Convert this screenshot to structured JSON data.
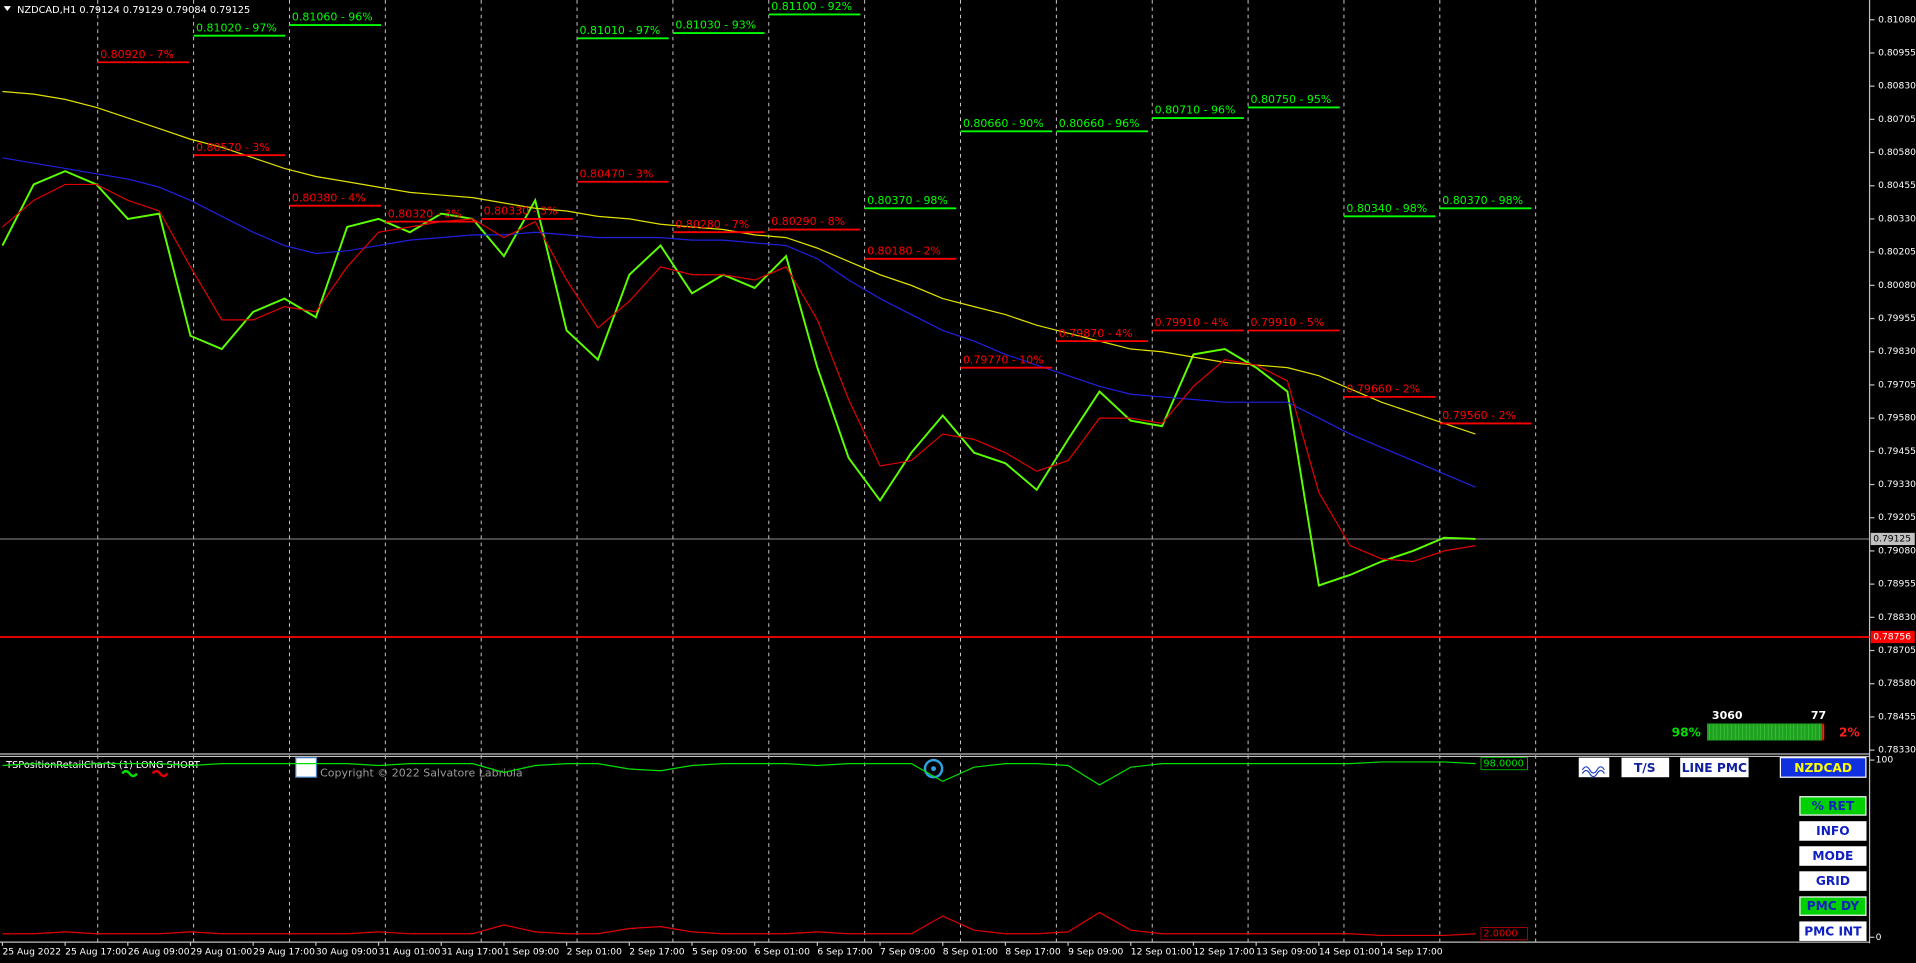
{
  "chart_data": [
    {
      "type": "line",
      "title": "NZDCAD,H1 0.79124 0.79129 0.79084 0.79125",
      "categories": [
        "25 Aug 2022",
        null,
        "25 Aug 17:00",
        null,
        "26 Aug 09:00",
        null,
        "29 Aug 01:00",
        null,
        "29 Aug 17:00",
        null,
        "30 Aug 09:00",
        null,
        "31 Aug 01:00",
        null,
        "31 Aug 17:00",
        null,
        "1 Sep 09:00",
        null,
        "2 Sep 01:00",
        null,
        "2 Sep 17:00",
        null,
        "5 Sep 09:00",
        null,
        "6 Sep 01:00",
        null,
        "6 Sep 17:00",
        null,
        "7 Sep 09:00",
        null,
        "8 Sep 01:00",
        null,
        "8 Sep 17:00",
        null,
        "9 Sep 09:00",
        null,
        "12 Sep 01:00",
        null,
        "12 Sep 17:00",
        null,
        "13 Sep 09:00",
        null,
        "14 Sep 01:00",
        null,
        "14 Sep 17:00",
        null,
        null,
        null
      ],
      "series": [
        {
          "color": "#5cff00",
          "values": [
            0.8023,
            0.8046,
            0.8051,
            0.8046,
            0.8033,
            0.8035,
            0.7989,
            0.7984,
            0.7998,
            0.8003,
            0.7996,
            0.803,
            0.8033,
            0.8028,
            0.8035,
            0.8033,
            0.8019,
            0.804,
            0.7991,
            0.798,
            0.8012,
            0.8023,
            0.8005,
            0.8012,
            0.8007,
            0.8019,
            0.7977,
            0.7943,
            0.7927,
            0.7945,
            0.7959,
            0.7945,
            0.7941,
            0.7931,
            0.795,
            0.7968,
            0.7957,
            0.7955,
            0.7982,
            0.7984,
            0.7977,
            0.7968,
            0.7895,
            0.7899,
            0.7904,
            0.7908,
            0.7913,
            0.79125
          ]
        },
        {
          "color": "#e0e000",
          "values": [
            0.8081,
            0.808,
            0.8078,
            0.8075,
            0.8071,
            0.8067,
            0.8063,
            0.806,
            0.8056,
            0.8052,
            0.8049,
            0.8047,
            0.8045,
            0.8043,
            0.8042,
            0.8041,
            0.8039,
            0.8037,
            0.8036,
            0.8034,
            0.8033,
            0.8031,
            0.803,
            0.8029,
            0.8027,
            0.8026,
            0.8022,
            0.8017,
            0.8012,
            0.8008,
            0.8003,
            0.8,
            0.7997,
            0.7993,
            0.799,
            0.7987,
            0.7984,
            0.7983,
            0.7981,
            0.7979,
            0.7978,
            0.7977,
            0.7974,
            0.7969,
            0.7964,
            0.796,
            0.7956,
            0.7952
          ]
        },
        {
          "color": "#2020e0",
          "values": [
            0.8056,
            0.8054,
            0.8052,
            0.805,
            0.8048,
            0.8045,
            0.804,
            0.8034,
            0.8028,
            0.8023,
            0.802,
            0.8021,
            0.8023,
            0.8025,
            0.8026,
            0.8027,
            0.8027,
            0.8028,
            0.8027,
            0.8026,
            0.8026,
            0.8026,
            0.8025,
            0.8025,
            0.8024,
            0.8023,
            0.8018,
            0.801,
            0.8003,
            0.7997,
            0.7991,
            0.7987,
            0.7982,
            0.7978,
            0.7974,
            0.797,
            0.7967,
            0.7966,
            0.7965,
            0.7964,
            0.7964,
            0.7964,
            0.7958,
            0.7952,
            0.7947,
            0.7942,
            0.7937,
            0.7932
          ]
        },
        {
          "color": "#e00000",
          "values": [
            0.803,
            0.804,
            0.8046,
            0.8046,
            0.804,
            0.8036,
            0.8015,
            0.7995,
            0.7995,
            0.8,
            0.7998,
            0.8015,
            0.8028,
            0.803,
            0.8032,
            0.8033,
            0.8026,
            0.8032,
            0.801,
            0.7992,
            0.8002,
            0.8015,
            0.8012,
            0.8012,
            0.801,
            0.8015,
            0.7995,
            0.7965,
            0.794,
            0.7942,
            0.7952,
            0.795,
            0.7945,
            0.7938,
            0.7942,
            0.7958,
            0.7958,
            0.7956,
            0.797,
            0.798,
            0.7978,
            0.7972,
            0.793,
            0.791,
            0.7905,
            0.7904,
            0.7908,
            0.791
          ]
        }
      ],
      "ylim": [
        0.7832,
        0.81145
      ],
      "yticks": [
        {
          "value": 0.8108,
          "label": "0.81080"
        },
        {
          "value": 0.80955,
          "label": "0.80955"
        },
        {
          "value": 0.8083,
          "label": "0.80830"
        },
        {
          "value": 0.80705,
          "label": "0.80705"
        },
        {
          "value": 0.8058,
          "label": "0.80580"
        },
        {
          "value": 0.80455,
          "label": "0.80455"
        },
        {
          "value": 0.8033,
          "label": "0.80330"
        },
        {
          "value": 0.80205,
          "label": "0.80205"
        },
        {
          "value": 0.8008,
          "label": "0.80080"
        },
        {
          "value": 0.79955,
          "label": "0.79955"
        },
        {
          "value": 0.7983,
          "label": "0.79830"
        },
        {
          "value": 0.79705,
          "label": "0.79705"
        },
        {
          "value": 0.7958,
          "label": "0.79580"
        },
        {
          "value": 0.79455,
          "label": "0.79455"
        },
        {
          "value": 0.7933,
          "label": "0.79330"
        },
        {
          "value": 0.79205,
          "label": "0.79205"
        },
        {
          "value": 0.7908,
          "label": "0.79080"
        },
        {
          "value": 0.78955,
          "label": "0.78955"
        },
        {
          "value": 0.7883,
          "label": "0.78830"
        },
        {
          "value": 0.78705,
          "label": "0.78705"
        },
        {
          "value": 0.7858,
          "label": "0.78580"
        },
        {
          "value": 0.78455,
          "label": "0.78455"
        },
        {
          "value": 0.7833,
          "label": "0.78330"
        }
      ],
      "price_lines": [
        {
          "value": 0.79125,
          "label": "0.79125",
          "color": "#c0c0c0"
        },
        {
          "value": 0.78756,
          "label": "0.78756",
          "color": "#ff0000"
        }
      ],
      "level_colors": {
        "long": "#00ff00",
        "short": "#ff0000"
      },
      "levels": [
        {
          "short": {
            "value": 0.8092,
            "label": "0.80920 - 7%"
          }
        },
        {
          "long": {
            "value": 0.8102,
            "label": "0.81020 - 97%"
          },
          "short": {
            "value": 0.8057,
            "label": "0.80570 - 3%"
          }
        },
        {
          "long": {
            "value": 0.8106,
            "label": "0.81060 - 96%"
          },
          "short": {
            "value": 0.8038,
            "label": "0.80380 - 4%"
          }
        },
        {
          "short": {
            "value": 0.8032,
            "label": "0.80320 - 3%"
          }
        },
        {
          "short": {
            "value": 0.8033,
            "label": "0.80330 - 3%"
          }
        },
        {
          "long": {
            "value": 0.8101,
            "label": "0.81010 - 97%"
          },
          "short": {
            "value": 0.8047,
            "label": "0.80470 - 3%"
          }
        },
        {
          "long": {
            "value": 0.8103,
            "label": "0.81030 - 93%"
          },
          "short": {
            "value": 0.8028,
            "label": "0.80280 - 7%"
          }
        },
        {
          "long": {
            "value": 0.811,
            "label": "0.81100 - 92%"
          },
          "short": {
            "value": 0.8029,
            "label": "0.80290 - 8%"
          }
        },
        {
          "long": {
            "value": 0.8037,
            "label": "0.80370 - 98%"
          },
          "short": {
            "value": 0.8018,
            "label": "0.80180 - 2%"
          }
        },
        {
          "long": {
            "value": 0.8066,
            "label": "0.80660 - 90%"
          },
          "short": {
            "value": 0.7977,
            "label": "0.79770 - 10%"
          }
        },
        {
          "long": {
            "value": 0.8066,
            "label": "0.80660 - 96%"
          },
          "short": {
            "value": 0.7987,
            "label": "0.79870 - 4%"
          }
        },
        {
          "long": {
            "value": 0.8071,
            "label": "0.80710 - 96%"
          },
          "short": {
            "value": 0.7991,
            "label": "0.79910 - 4%"
          }
        },
        {
          "long": {
            "value": 0.8075,
            "label": "0.80750 - 95%"
          },
          "short": {
            "value": 0.7991,
            "label": "0.79910 - 5%"
          }
        },
        {
          "long": {
            "value": 0.8034,
            "label": "0.80340 - 98%"
          },
          "short": {
            "value": 0.7966,
            "label": "0.79660 - 2%"
          }
        },
        {
          "long": {
            "value": 0.8037,
            "label": "0.80370 - 98%"
          },
          "short": {
            "value": 0.7956,
            "label": "0.79560 - 2%"
          }
        }
      ],
      "widget": {
        "long_count": 3060,
        "short_count": 77,
        "long_pct": {
          "value": 98,
          "label": "98%"
        },
        "short_pct": {
          "value": 2,
          "label": "2%"
        }
      }
    },
    {
      "type": "line",
      "title": "TSPositionRetailCharts (1) LONG SHORT",
      "annotation": "Copyright © 2022 Salvatore Labriola",
      "ylim": [
        0,
        100
      ],
      "yticks": [
        0,
        100
      ],
      "series": [
        {
          "color": "#00e000",
          "values": [
            97,
            98,
            97,
            98,
            98,
            98,
            97,
            98,
            98,
            98,
            98,
            98,
            97,
            98,
            98,
            98,
            93,
            97,
            98,
            98,
            95,
            94,
            97,
            98,
            98,
            98,
            97,
            98,
            98,
            98,
            88,
            96,
            98,
            98,
            97,
            86,
            96,
            98,
            98,
            98,
            98,
            98,
            98,
            98,
            99,
            99,
            99,
            98
          ],
          "end_label": {
            "value": 98,
            "label": "98.0000"
          }
        },
        {
          "color": "#e00000",
          "values": [
            2,
            2,
            3,
            2,
            2,
            2,
            3,
            2,
            2,
            2,
            2,
            2,
            3,
            2,
            2,
            2,
            7,
            3,
            2,
            2,
            5,
            6,
            3,
            2,
            2,
            2,
            3,
            2,
            2,
            2,
            12,
            4,
            2,
            2,
            3,
            14,
            4,
            2,
            2,
            2,
            2,
            2,
            2,
            2,
            1,
            1,
            1,
            2
          ],
          "end_label": {
            "value": 2,
            "label": "2.0000"
          }
        }
      ]
    }
  ],
  "toolbar": [
    "T/S",
    "LINE PMC",
    "NZDCAD"
  ],
  "panel_buttons": [
    "% RET",
    "INFO",
    "MODE",
    "GRID",
    "PMC DY",
    "PMC INT"
  ]
}
